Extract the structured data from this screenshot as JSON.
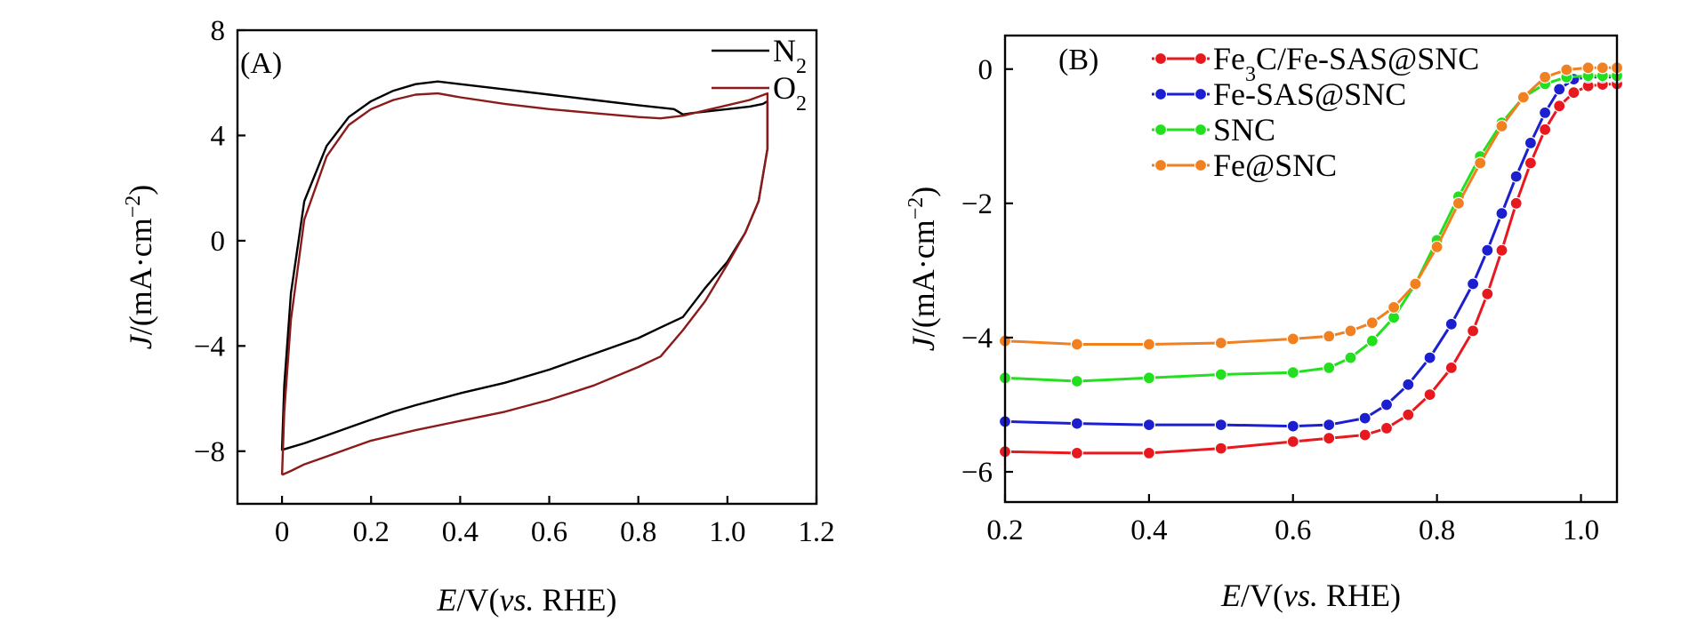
{
  "chart_data": [
    {
      "type": "line",
      "panel_label": "(A)",
      "xlabel": {
        "italic": "E",
        "normal": "/V(",
        "italic2": "vs.",
        "normal2": " RHE)"
      },
      "ylabel": {
        "italic": "J",
        "normal": "/(mA·cm",
        "sup": "−2",
        "close": ")"
      },
      "xlim": [
        -0.1,
        1.2
      ],
      "ylim": [
        -10,
        8
      ],
      "xticks": [
        0,
        0.2,
        0.4,
        0.6,
        0.8,
        1.0,
        1.2
      ],
      "xtick_labels": [
        "0",
        "0.2",
        "0.4",
        "0.6",
        "0.8",
        "1.0",
        "1.2"
      ],
      "yticks": [
        -8,
        -4,
        0,
        4,
        8
      ],
      "ytick_labels": [
        "−8",
        "−4",
        "0",
        "4",
        "8"
      ],
      "legend": [
        "N2",
        "O2"
      ],
      "legend_display": [
        {
          "base": "N",
          "sub": "2"
        },
        {
          "base": "O",
          "sub": "2"
        }
      ],
      "series": [
        {
          "name": "N2",
          "color": "#000000",
          "x": [
            0.0,
            0.005,
            0.02,
            0.05,
            0.1,
            0.15,
            0.2,
            0.25,
            0.3,
            0.35,
            0.4,
            0.5,
            0.6,
            0.7,
            0.8,
            0.88,
            0.9,
            0.92,
            1.0,
            1.05,
            1.08,
            1.09,
            1.09,
            1.07,
            1.04,
            1.0,
            0.95,
            0.9,
            0.85,
            0.8,
            0.7,
            0.6,
            0.5,
            0.4,
            0.3,
            0.25,
            0.2,
            0.15,
            0.1,
            0.05,
            0.02,
            0.0,
            0.0
          ],
          "y": [
            -7.9,
            -5.5,
            -2.0,
            1.5,
            3.6,
            4.7,
            5.3,
            5.7,
            5.95,
            6.05,
            5.95,
            5.75,
            5.55,
            5.35,
            5.15,
            5.0,
            4.8,
            4.85,
            5.0,
            5.1,
            5.2,
            5.3,
            3.5,
            1.5,
            0.3,
            -0.8,
            -1.8,
            -2.9,
            -3.3,
            -3.7,
            -4.3,
            -4.9,
            -5.4,
            -5.8,
            -6.25,
            -6.5,
            -6.8,
            -7.1,
            -7.4,
            -7.7,
            -7.85,
            -7.95,
            -7.9
          ]
        },
        {
          "name": "O2",
          "color": "#8b1a1a",
          "x": [
            0.0,
            0.005,
            0.02,
            0.05,
            0.1,
            0.15,
            0.2,
            0.25,
            0.3,
            0.35,
            0.4,
            0.5,
            0.6,
            0.7,
            0.8,
            0.85,
            0.9,
            0.95,
            1.0,
            1.05,
            1.09,
            1.09,
            1.07,
            1.04,
            1.0,
            0.95,
            0.9,
            0.85,
            0.8,
            0.7,
            0.6,
            0.5,
            0.4,
            0.3,
            0.25,
            0.2,
            0.15,
            0.1,
            0.05,
            0.02,
            0.0,
            0.0
          ],
          "y": [
            -8.9,
            -6.5,
            -3.0,
            0.8,
            3.2,
            4.4,
            5.0,
            5.35,
            5.55,
            5.6,
            5.45,
            5.2,
            5.0,
            4.85,
            4.7,
            4.65,
            4.75,
            4.95,
            5.15,
            5.35,
            5.6,
            3.5,
            1.5,
            0.3,
            -0.9,
            -2.3,
            -3.4,
            -4.4,
            -4.8,
            -5.5,
            -6.05,
            -6.5,
            -6.85,
            -7.2,
            -7.4,
            -7.6,
            -7.9,
            -8.2,
            -8.5,
            -8.75,
            -8.9,
            -8.9
          ]
        }
      ]
    },
    {
      "type": "line",
      "panel_label": "(B)",
      "xlabel": {
        "italic": "E",
        "normal": "/V(",
        "italic2": "vs.",
        "normal2": " RHE)"
      },
      "ylabel": {
        "italic": "J",
        "normal": "/(mA·cm",
        "sup": "−2",
        "close": ")"
      },
      "xlim": [
        0.2,
        1.05
      ],
      "ylim": [
        -6.45,
        0.5
      ],
      "xticks": [
        0.2,
        0.4,
        0.6,
        0.8,
        1.0
      ],
      "xtick_labels": [
        "0.2",
        "0.4",
        "0.6",
        "0.8",
        "1.0"
      ],
      "yticks": [
        -6,
        -4,
        -2,
        0
      ],
      "ytick_labels": [
        "−6",
        "−4",
        "−2",
        "0"
      ],
      "legend": [
        "Fe3C/Fe-SAS@SNC",
        "Fe-SAS@SNC",
        "SNC",
        "Fe@SNC"
      ],
      "legend_display": [
        {
          "a": "Fe",
          "sub": "3",
          "b": "C/Fe-SAS@SNC"
        },
        {
          "a": "Fe-SAS@SNC",
          "sub": "",
          "b": ""
        },
        {
          "a": "SNC",
          "sub": "",
          "b": ""
        },
        {
          "a": "Fe@SNC",
          "sub": "",
          "b": ""
        }
      ],
      "series": [
        {
          "name": "Fe3C/Fe-SAS@SNC",
          "color": "#e8191e",
          "x": [
            0.2,
            0.3,
            0.4,
            0.5,
            0.6,
            0.65,
            0.7,
            0.73,
            0.76,
            0.79,
            0.82,
            0.85,
            0.87,
            0.89,
            0.91,
            0.93,
            0.95,
            0.97,
            0.99,
            1.01,
            1.03,
            1.05
          ],
          "y": [
            -5.7,
            -5.72,
            -5.72,
            -5.65,
            -5.55,
            -5.5,
            -5.45,
            -5.35,
            -5.15,
            -4.85,
            -4.45,
            -3.9,
            -3.35,
            -2.7,
            -2.0,
            -1.4,
            -0.9,
            -0.55,
            -0.35,
            -0.25,
            -0.23,
            -0.22
          ]
        },
        {
          "name": "Fe-SAS@SNC",
          "color": "#1b1fd0",
          "x": [
            0.2,
            0.3,
            0.4,
            0.5,
            0.6,
            0.65,
            0.7,
            0.73,
            0.76,
            0.79,
            0.82,
            0.85,
            0.87,
            0.89,
            0.91,
            0.93,
            0.95,
            0.97,
            0.99,
            1.01,
            1.03,
            1.05
          ],
          "y": [
            -5.25,
            -5.28,
            -5.3,
            -5.3,
            -5.32,
            -5.3,
            -5.2,
            -5.0,
            -4.7,
            -4.3,
            -3.8,
            -3.2,
            -2.7,
            -2.15,
            -1.6,
            -1.1,
            -0.65,
            -0.3,
            -0.15,
            -0.12,
            -0.12,
            -0.12
          ]
        },
        {
          "name": "SNC",
          "color": "#22e01e",
          "x": [
            0.2,
            0.3,
            0.4,
            0.5,
            0.6,
            0.65,
            0.68,
            0.71,
            0.74,
            0.77,
            0.8,
            0.83,
            0.86,
            0.89,
            0.92,
            0.95,
            0.98,
            1.01,
            1.03,
            1.05
          ],
          "y": [
            -4.6,
            -4.65,
            -4.6,
            -4.55,
            -4.52,
            -4.45,
            -4.3,
            -4.05,
            -3.7,
            -3.2,
            -2.55,
            -1.9,
            -1.3,
            -0.8,
            -0.42,
            -0.22,
            -0.12,
            -0.1,
            -0.1,
            -0.1
          ]
        },
        {
          "name": "Fe@SNC",
          "color": "#f08020",
          "x": [
            0.2,
            0.3,
            0.4,
            0.5,
            0.6,
            0.65,
            0.68,
            0.71,
            0.74,
            0.77,
            0.8,
            0.83,
            0.86,
            0.89,
            0.92,
            0.95,
            0.98,
            1.01,
            1.03,
            1.05
          ],
          "y": [
            -4.05,
            -4.1,
            -4.1,
            -4.08,
            -4.02,
            -3.98,
            -3.9,
            -3.78,
            -3.55,
            -3.2,
            -2.65,
            -2.0,
            -1.4,
            -0.85,
            -0.42,
            -0.12,
            -0.01,
            0.02,
            0.02,
            0.02
          ]
        }
      ]
    }
  ]
}
